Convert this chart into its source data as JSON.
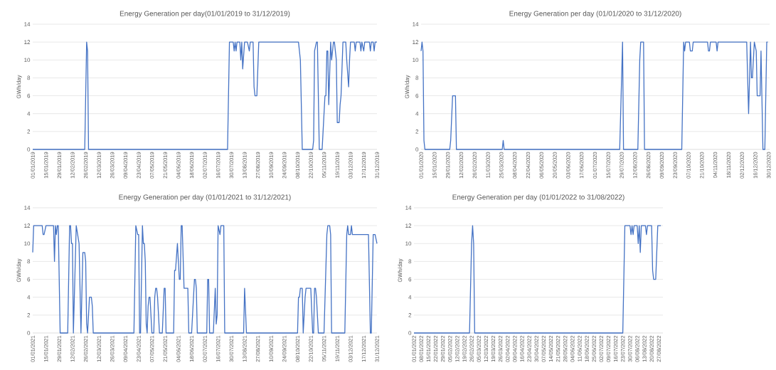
{
  "chart_data": [
    {
      "type": "line",
      "title": "Energy Generation per day(01/01/2019 to 31/12/2019)",
      "ylabel": "GWh/day",
      "color": "#4472c4",
      "grid": "y",
      "xlim": [
        "2019-01-01",
        "2019-12-31"
      ],
      "ylim": [
        0,
        14
      ],
      "yticks": [
        0,
        2,
        4,
        6,
        8,
        10,
        12,
        14
      ],
      "xticks": [
        {
          "value": "2019-01-01",
          "label": "01/01/2019"
        },
        {
          "value": "2019-01-15",
          "label": "15/01/2019"
        },
        {
          "value": "2019-01-29",
          "label": "29/01/2019"
        },
        {
          "value": "2019-02-12",
          "label": "12/02/2019"
        },
        {
          "value": "2019-02-26",
          "label": "26/02/2019"
        },
        {
          "value": "2019-03-12",
          "label": "12/03/2019"
        },
        {
          "value": "2019-03-26",
          "label": "26/03/2019"
        },
        {
          "value": "2019-04-09",
          "label": "09/04/2019"
        },
        {
          "value": "2019-04-23",
          "label": "23/04/2019"
        },
        {
          "value": "2019-05-07",
          "label": "07/05/2019"
        },
        {
          "value": "2019-05-21",
          "label": "21/05/2019"
        },
        {
          "value": "2019-06-04",
          "label": "04/06/2019"
        },
        {
          "value": "2019-06-18",
          "label": "18/06/2019"
        },
        {
          "value": "2019-07-02",
          "label": "02/07/2019"
        },
        {
          "value": "2019-07-16",
          "label": "16/07/2019"
        },
        {
          "value": "2019-07-30",
          "label": "30/07/2019"
        },
        {
          "value": "2019-08-13",
          "label": "13/08/2019"
        },
        {
          "value": "2019-08-27",
          "label": "27/08/2019"
        },
        {
          "value": "2019-09-10",
          "label": "10/09/2019"
        },
        {
          "value": "2019-09-24",
          "label": "24/09/2019"
        },
        {
          "value": "2019-10-08",
          "label": "08/10/2019"
        },
        {
          "value": "2019-10-22",
          "label": "22/10/2019"
        },
        {
          "value": "2019-11-05",
          "label": "05/11/2019"
        },
        {
          "value": "2019-11-19",
          "label": "19/11/2019"
        },
        {
          "value": "2019-12-03",
          "label": "03/12/2019"
        },
        {
          "value": "2019-12-17",
          "label": "17/12/2019"
        },
        {
          "value": "2019-12-31",
          "label": "31/12/2019"
        }
      ],
      "x": [
        "2019-01-01",
        "2019-02-25",
        "2019-02-27",
        "2019-02-28",
        "2019-03-01",
        "2019-07-26",
        "2019-07-28",
        "2019-08-01",
        "2019-08-02",
        "2019-08-03",
        "2019-08-04",
        "2019-08-05",
        "2019-08-08",
        "2019-08-09",
        "2019-08-10",
        "2019-08-11",
        "2019-08-13",
        "2019-08-16",
        "2019-08-18",
        "2019-08-19",
        "2019-08-22",
        "2019-08-23",
        "2019-08-24",
        "2019-08-26",
        "2019-08-28",
        "2019-10-09",
        "2019-10-11",
        "2019-10-13",
        "2019-10-24",
        "2019-10-25",
        "2019-10-26",
        "2019-10-28",
        "2019-10-29",
        "2019-10-31",
        "2019-11-03",
        "2019-11-04",
        "2019-11-06",
        "2019-11-07",
        "2019-11-08",
        "2019-11-09",
        "2019-11-10",
        "2019-11-12",
        "2019-11-13",
        "2019-11-15",
        "2019-11-16",
        "2019-11-18",
        "2019-11-19",
        "2019-11-21",
        "2019-11-22",
        "2019-11-23",
        "2019-11-25",
        "2019-11-28",
        "2019-11-29",
        "2019-12-01",
        "2019-12-02",
        "2019-12-03",
        "2019-12-07",
        "2019-12-08",
        "2019-12-09",
        "2019-12-13",
        "2019-12-14",
        "2019-12-15",
        "2019-12-17",
        "2019-12-18",
        "2019-12-23",
        "2019-12-24",
        "2019-12-25",
        "2019-12-27",
        "2019-12-28",
        "2019-12-29",
        "2019-12-31"
      ],
      "values": [
        0,
        0,
        12,
        11,
        0,
        0,
        12,
        12,
        11,
        12,
        11,
        12,
        12,
        10,
        12,
        9,
        12,
        12,
        11,
        12,
        12,
        7,
        6,
        6,
        12,
        12,
        10,
        0,
        0,
        1,
        11,
        12,
        12,
        0,
        0,
        2,
        6,
        6,
        11,
        11,
        5,
        12,
        10,
        12,
        12,
        10,
        3,
        3,
        5,
        6,
        12,
        12,
        10,
        7,
        10,
        12,
        12,
        11,
        12,
        12,
        11,
        12,
        11,
        12,
        12,
        11,
        12,
        12,
        11,
        12,
        12
      ]
    },
    {
      "type": "line",
      "title": "Energy Generation per day (01/01/2020 to  31/12/2020)",
      "ylabel": "GWh/day",
      "color": "#4472c4",
      "grid": "y",
      "xlim": [
        "2020-01-01",
        "2020-12-31"
      ],
      "ylim": [
        0,
        14
      ],
      "yticks": [
        0,
        2,
        4,
        6,
        8,
        10,
        12,
        14
      ],
      "xticks": [
        {
          "value": "2020-01-01",
          "label": "01/01/2020"
        },
        {
          "value": "2020-01-15",
          "label": "15/01/2020"
        },
        {
          "value": "2020-01-29",
          "label": "29/01/2020"
        },
        {
          "value": "2020-02-12",
          "label": "12/02/2020"
        },
        {
          "value": "2020-02-26",
          "label": "26/02/2020"
        },
        {
          "value": "2020-03-11",
          "label": "11/03/2020"
        },
        {
          "value": "2020-03-25",
          "label": "25/03/2020"
        },
        {
          "value": "2020-04-08",
          "label": "08/04/2020"
        },
        {
          "value": "2020-04-22",
          "label": "22/04/2020"
        },
        {
          "value": "2020-05-06",
          "label": "06/05/2020"
        },
        {
          "value": "2020-05-20",
          "label": "20/05/2020"
        },
        {
          "value": "2020-06-03",
          "label": "03/06/2020"
        },
        {
          "value": "2020-06-17",
          "label": "17/06/2020"
        },
        {
          "value": "2020-07-01",
          "label": "01/07/2020"
        },
        {
          "value": "2020-07-15",
          "label": "15/07/2020"
        },
        {
          "value": "2020-07-29",
          "label": "29/07/2020"
        },
        {
          "value": "2020-08-12",
          "label": "12/08/2020"
        },
        {
          "value": "2020-08-26",
          "label": "26/08/2020"
        },
        {
          "value": "2020-09-09",
          "label": "09/09/2020"
        },
        {
          "value": "2020-09-23",
          "label": "23/09/2020"
        },
        {
          "value": "2020-10-07",
          "label": "07/10/2020"
        },
        {
          "value": "2020-10-21",
          "label": "21/10/2020"
        },
        {
          "value": "2020-11-04",
          "label": "04/11/2020"
        },
        {
          "value": "2020-11-18",
          "label": "18/11/2020"
        },
        {
          "value": "2020-12-02",
          "label": "02/12/2020"
        },
        {
          "value": "2020-12-16",
          "label": "16/12/2020"
        },
        {
          "value": "2020-12-30",
          "label": "30/12/2020"
        }
      ],
      "x": [
        "2020-01-01",
        "2020-01-02",
        "2020-01-03",
        "2020-01-04",
        "2020-01-05",
        "2020-01-31",
        "2020-02-01",
        "2020-02-03",
        "2020-02-06",
        "2020-02-07",
        "2020-03-26",
        "2020-03-27",
        "2020-03-28",
        "2020-07-27",
        "2020-07-30",
        "2020-07-31",
        "2020-08-15",
        "2020-08-17",
        "2020-08-18",
        "2020-08-21",
        "2020-08-22",
        "2020-09-30",
        "2020-10-02",
        "2020-10-03",
        "2020-10-04",
        "2020-10-08",
        "2020-10-09",
        "2020-10-11",
        "2020-10-12",
        "2020-10-27",
        "2020-10-28",
        "2020-10-29",
        "2020-10-30",
        "2020-11-05",
        "2020-11-06",
        "2020-11-07",
        "2020-12-07",
        "2020-12-09",
        "2020-12-11",
        "2020-12-12",
        "2020-12-13",
        "2020-12-15",
        "2020-12-17",
        "2020-12-18",
        "2020-12-21",
        "2020-12-22",
        "2020-12-24",
        "2020-12-26",
        "2020-12-28",
        "2020-12-29"
      ],
      "values": [
        11,
        12,
        11,
        1,
        0,
        0,
        1,
        6,
        6,
        0,
        0,
        1,
        0,
        0,
        12,
        0,
        0,
        10,
        12,
        12,
        0,
        0,
        12,
        11,
        12,
        12,
        11,
        11,
        12,
        12,
        11,
        11,
        12,
        12,
        11,
        12,
        12,
        4,
        12,
        8,
        8,
        12,
        11,
        6,
        6,
        11,
        0,
        0,
        12,
        12
      ]
    },
    {
      "type": "line",
      "title": "Energy Generation per day (01/01/2021 to 31/12/2021)",
      "ylabel": "GWh/day",
      "color": "#4472c4",
      "grid": "y",
      "xlim": [
        "2021-01-01",
        "2021-12-31"
      ],
      "ylim": [
        0,
        14
      ],
      "yticks": [
        0,
        2,
        4,
        6,
        8,
        10,
        12,
        14
      ],
      "xticks": [
        {
          "value": "2021-01-01",
          "label": "01/01/2021"
        },
        {
          "value": "2021-01-15",
          "label": "15/01/2021"
        },
        {
          "value": "2021-01-29",
          "label": "29/01/2021"
        },
        {
          "value": "2021-02-12",
          "label": "12/02/2021"
        },
        {
          "value": "2021-02-26",
          "label": "26/02/2021"
        },
        {
          "value": "2021-03-12",
          "label": "12/03/2021"
        },
        {
          "value": "2021-03-26",
          "label": "26/03/2021"
        },
        {
          "value": "2021-04-09",
          "label": "09/04/2021"
        },
        {
          "value": "2021-04-23",
          "label": "23/04/2021"
        },
        {
          "value": "2021-05-07",
          "label": "07/05/2021"
        },
        {
          "value": "2021-05-21",
          "label": "21/05/2021"
        },
        {
          "value": "2021-06-04",
          "label": "04/06/2021"
        },
        {
          "value": "2021-06-18",
          "label": "18/06/2021"
        },
        {
          "value": "2021-07-02",
          "label": "02/07/2021"
        },
        {
          "value": "2021-07-16",
          "label": "16/07/2021"
        },
        {
          "value": "2021-07-30",
          "label": "30/07/2021"
        },
        {
          "value": "2021-08-13",
          "label": "13/08/2021"
        },
        {
          "value": "2021-08-27",
          "label": "27/08/2021"
        },
        {
          "value": "2021-09-10",
          "label": "10/09/2021"
        },
        {
          "value": "2021-09-24",
          "label": "24/09/2021"
        },
        {
          "value": "2021-10-08",
          "label": "08/10/2021"
        },
        {
          "value": "2021-10-22",
          "label": "22/10/2021"
        },
        {
          "value": "2021-11-05",
          "label": "05/11/2021"
        },
        {
          "value": "2021-11-19",
          "label": "19/11/2021"
        },
        {
          "value": "2021-12-03",
          "label": "03/12/2021"
        },
        {
          "value": "2021-12-17",
          "label": "17/12/2021"
        },
        {
          "value": "2021-12-31",
          "label": "31/12/2021"
        }
      ],
      "x": [
        "2021-01-01",
        "2021-01-02",
        "2021-01-11",
        "2021-01-12",
        "2021-01-13",
        "2021-01-15",
        "2021-01-23",
        "2021-01-24",
        "2021-01-25",
        "2021-01-26",
        "2021-01-27",
        "2021-01-28",
        "2021-01-30",
        "2021-02-07",
        "2021-02-09",
        "2021-02-10",
        "2021-02-11",
        "2021-02-12",
        "2021-02-13",
        "2021-02-16",
        "2021-02-19",
        "2021-02-21",
        "2021-02-23",
        "2021-02-25",
        "2021-02-26",
        "2021-02-27",
        "2021-02-28",
        "2021-03-02",
        "2021-03-04",
        "2021-03-05",
        "2021-03-06",
        "2021-04-18",
        "2021-04-20",
        "2021-04-22",
        "2021-04-23",
        "2021-04-24",
        "2021-04-25",
        "2021-04-27",
        "2021-04-28",
        "2021-04-29",
        "2021-04-30",
        "2021-05-01",
        "2021-05-02",
        "2021-05-03",
        "2021-05-04",
        "2021-05-05",
        "2021-05-07",
        "2021-05-09",
        "2021-05-10",
        "2021-05-11",
        "2021-05-12",
        "2021-05-13",
        "2021-05-15",
        "2021-05-18",
        "2021-05-20",
        "2021-05-21",
        "2021-05-22",
        "2021-05-30",
        "2021-05-31",
        "2021-06-01",
        "2021-06-03",
        "2021-06-05",
        "2021-06-06",
        "2021-06-07",
        "2021-06-08",
        "2021-06-10",
        "2021-06-14",
        "2021-06-15",
        "2021-06-18",
        "2021-06-21",
        "2021-06-22",
        "2021-06-23",
        "2021-06-24",
        "2021-07-04",
        "2021-07-05",
        "2021-07-06",
        "2021-07-07",
        "2021-07-11",
        "2021-07-13",
        "2021-07-14",
        "2021-07-15",
        "2021-07-16",
        "2021-07-18",
        "2021-07-19",
        "2021-07-22",
        "2021-07-23",
        "2021-08-12",
        "2021-08-13",
        "2021-08-15",
        "2021-10-08",
        "2021-10-09",
        "2021-10-10",
        "2021-10-11",
        "2021-10-13",
        "2021-10-14",
        "2021-10-16",
        "2021-10-17",
        "2021-10-22",
        "2021-10-24",
        "2021-10-25",
        "2021-10-26",
        "2021-10-27",
        "2021-10-28",
        "2021-10-30",
        "2021-11-05",
        "2021-11-08",
        "2021-11-09",
        "2021-11-11",
        "2021-11-12",
        "2021-11-13",
        "2021-11-27",
        "2021-11-29",
        "2021-11-30",
        "2021-12-01",
        "2021-12-03",
        "2021-12-04",
        "2021-12-05",
        "2021-12-22",
        "2021-12-24",
        "2021-12-25",
        "2021-12-27",
        "2021-12-29",
        "2021-12-31"
      ],
      "values": [
        9,
        12,
        12,
        11,
        11,
        12,
        12,
        8,
        12,
        11,
        12,
        12,
        0,
        0,
        12,
        12,
        10,
        10,
        0,
        12,
        10,
        0,
        9,
        9,
        8,
        1,
        0,
        4,
        4,
        3,
        0,
        0,
        12,
        11,
        11,
        0,
        0,
        12,
        10,
        10,
        8,
        1,
        0,
        3,
        4,
        4,
        0,
        0,
        4,
        5,
        5,
        4,
        0,
        0,
        5,
        5,
        0,
        0,
        7,
        7,
        10,
        6,
        6,
        12,
        12,
        5,
        5,
        0,
        0,
        6,
        6,
        5,
        0,
        0,
        6,
        6,
        0,
        0,
        5,
        1,
        2,
        12,
        11,
        12,
        12,
        0,
        0,
        5,
        0,
        0,
        4,
        4,
        5,
        5,
        0,
        4,
        5,
        5,
        0,
        0,
        5,
        5,
        4,
        0,
        0,
        11,
        12,
        12,
        11,
        0,
        0,
        11,
        12,
        11,
        11,
        12,
        11,
        11,
        0,
        0,
        11,
        11,
        10
      ]
    },
    {
      "type": "line",
      "title": "Energy Generation per day (01/01/2022 to 31/08/2022)",
      "ylabel": "GWh/day",
      "color": "#4472c4",
      "grid": "y",
      "xlim": [
        "2022-01-01",
        "2022-08-31"
      ],
      "ylim": [
        0,
        14
      ],
      "yticks": [
        0,
        2,
        4,
        6,
        8,
        10,
        12,
        14
      ],
      "xticks": [
        {
          "value": "2022-01-01",
          "label": "01/01/2022"
        },
        {
          "value": "2022-01-08",
          "label": "08/01/2022"
        },
        {
          "value": "2022-01-15",
          "label": "15/01/2022"
        },
        {
          "value": "2022-01-22",
          "label": "22/01/2022"
        },
        {
          "value": "2022-01-29",
          "label": "29/01/2022"
        },
        {
          "value": "2022-02-05",
          "label": "05/02/2022"
        },
        {
          "value": "2022-02-12",
          "label": "12/02/2022"
        },
        {
          "value": "2022-02-19",
          "label": "19/02/2022"
        },
        {
          "value": "2022-02-26",
          "label": "26/02/2022"
        },
        {
          "value": "2022-03-05",
          "label": "05/03/2022"
        },
        {
          "value": "2022-03-12",
          "label": "12/03/2022"
        },
        {
          "value": "2022-03-19",
          "label": "19/03/2022"
        },
        {
          "value": "2022-03-26",
          "label": "26/03/2022"
        },
        {
          "value": "2022-04-02",
          "label": "02/04/2022"
        },
        {
          "value": "2022-04-09",
          "label": "09/04/2022"
        },
        {
          "value": "2022-04-16",
          "label": "16/04/2022"
        },
        {
          "value": "2022-04-23",
          "label": "23/04/2022"
        },
        {
          "value": "2022-04-30",
          "label": "30/04/2022"
        },
        {
          "value": "2022-05-07",
          "label": "07/05/2022"
        },
        {
          "value": "2022-05-14",
          "label": "14/05/2022"
        },
        {
          "value": "2022-05-21",
          "label": "21/05/2022"
        },
        {
          "value": "2022-05-28",
          "label": "28/05/2022"
        },
        {
          "value": "2022-06-04",
          "label": "04/06/2022"
        },
        {
          "value": "2022-06-11",
          "label": "11/06/2022"
        },
        {
          "value": "2022-06-18",
          "label": "18/06/2022"
        },
        {
          "value": "2022-06-25",
          "label": "25/06/2022"
        },
        {
          "value": "2022-07-02",
          "label": "02/07/2022"
        },
        {
          "value": "2022-07-09",
          "label": "09/07/2022"
        },
        {
          "value": "2022-07-16",
          "label": "16/07/2022"
        },
        {
          "value": "2022-07-23",
          "label": "23/07/2022"
        },
        {
          "value": "2022-07-30",
          "label": "30/07/2022"
        },
        {
          "value": "2022-08-06",
          "label": "06/08/2022"
        },
        {
          "value": "2022-08-13",
          "label": "13/08/2022"
        },
        {
          "value": "2022-08-20",
          "label": "20/08/2022"
        },
        {
          "value": "2022-08-27",
          "label": "27/08/2022"
        }
      ],
      "x": [
        "2022-01-01",
        "2022-02-24",
        "2022-02-26",
        "2022-02-27",
        "2022-02-28",
        "2022-03-01",
        "2022-07-23",
        "2022-07-25",
        "2022-07-30",
        "2022-07-31",
        "2022-08-01",
        "2022-08-02",
        "2022-08-03",
        "2022-08-06",
        "2022-08-07",
        "2022-08-08",
        "2022-08-09",
        "2022-08-10",
        "2022-08-14",
        "2022-08-15",
        "2022-08-16",
        "2022-08-20",
        "2022-08-21",
        "2022-08-22",
        "2022-08-24",
        "2022-08-26",
        "2022-08-29"
      ],
      "values": [
        0,
        0,
        10,
        12,
        10,
        0,
        0,
        12,
        12,
        11,
        12,
        11,
        12,
        12,
        10,
        12,
        9,
        12,
        12,
        11,
        12,
        12,
        7,
        6,
        6,
        12,
        12
      ]
    }
  ]
}
